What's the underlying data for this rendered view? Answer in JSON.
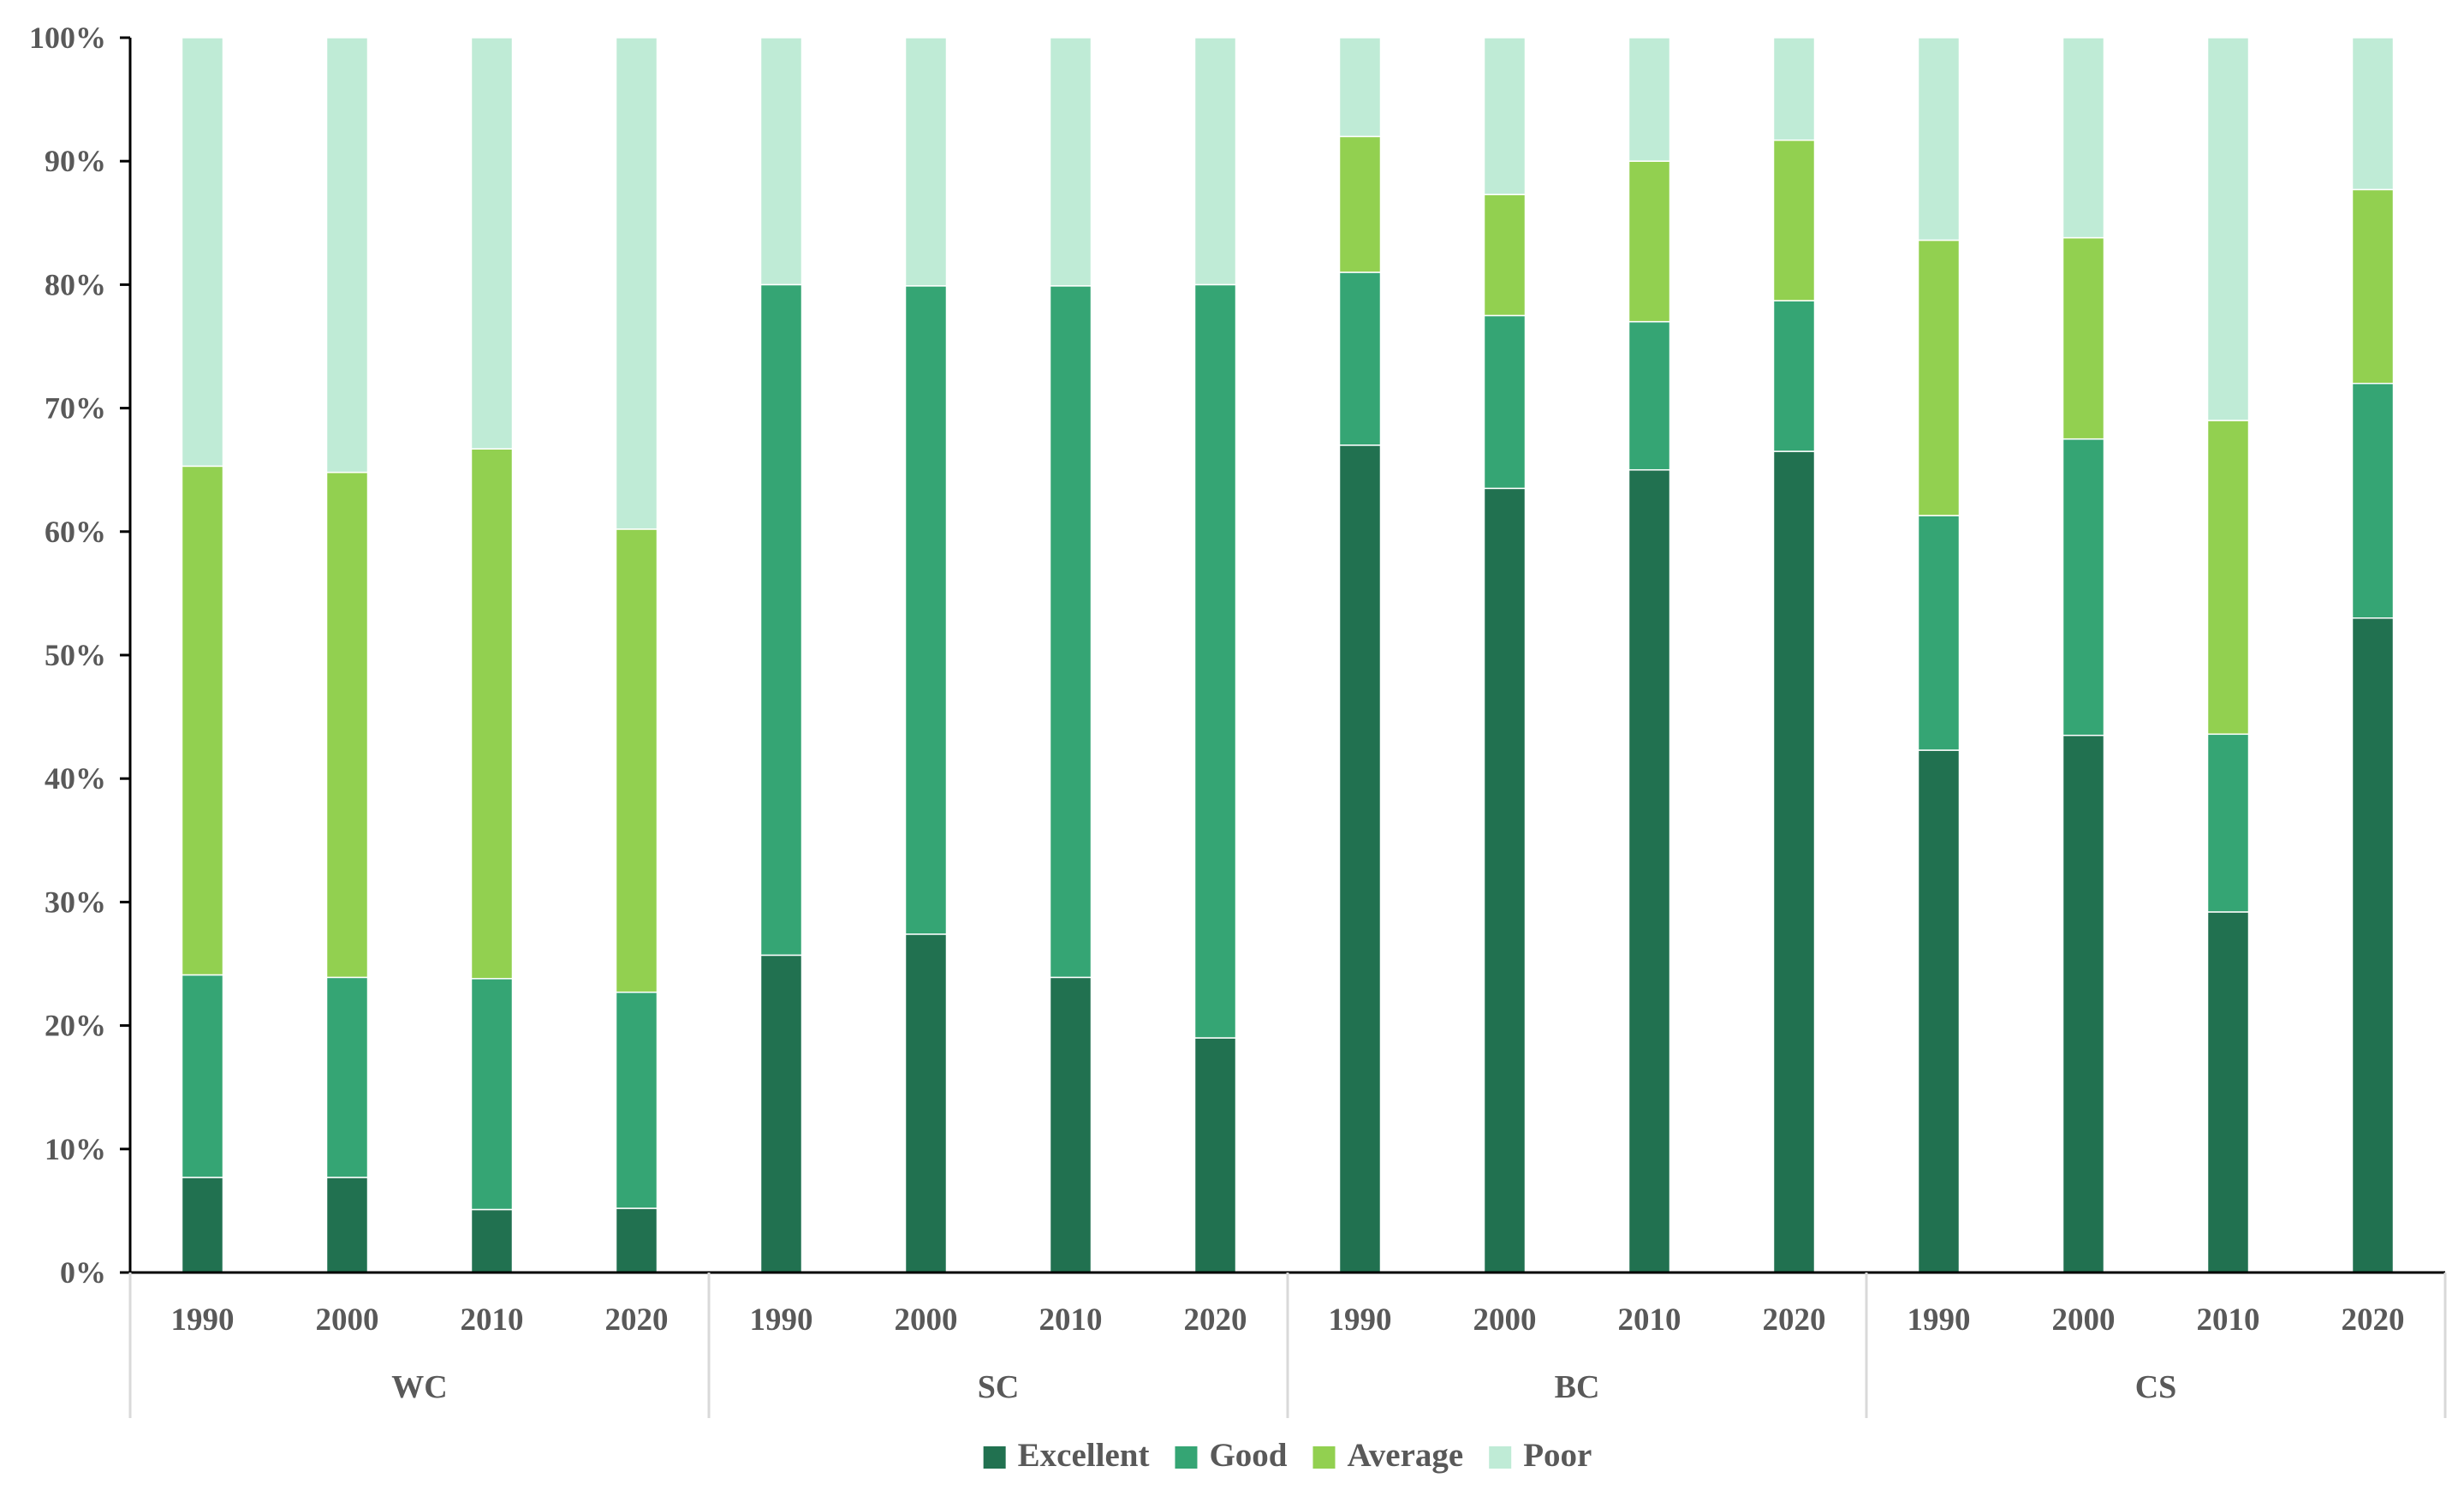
{
  "chart_data": {
    "type": "bar",
    "stacked": "percent",
    "groups": [
      {
        "name": "WC",
        "categories": [
          "1990",
          "2000",
          "2010",
          "2020"
        ]
      },
      {
        "name": "SC",
        "categories": [
          "1990",
          "2000",
          "2010",
          "2020"
        ]
      },
      {
        "name": "BC",
        "categories": [
          "1990",
          "2000",
          "2010",
          "2020"
        ]
      },
      {
        "name": "CS",
        "categories": [
          "1990",
          "2000",
          "2010",
          "2020"
        ]
      }
    ],
    "series": [
      {
        "name": "Excellent",
        "color": "#217150",
        "values": [
          7.7,
          7.7,
          5.1,
          5.2,
          25.7,
          27.4,
          23.9,
          19.0,
          67.0,
          63.5,
          65.0,
          66.5,
          42.3,
          43.5,
          29.2,
          53.0
        ]
      },
      {
        "name": "Good",
        "color": "#35A574",
        "values": [
          16.4,
          16.2,
          18.7,
          17.5,
          54.3,
          52.5,
          56.0,
          61.0,
          14.0,
          14.0,
          12.0,
          12.2,
          19.0,
          24.0,
          14.4,
          19.0
        ]
      },
      {
        "name": "Average",
        "color": "#92D050",
        "values": [
          41.2,
          40.9,
          42.9,
          37.5,
          0.0,
          0.0,
          0.0,
          0.0,
          11.0,
          9.8,
          13.0,
          13.0,
          22.3,
          16.3,
          25.4,
          15.7
        ]
      },
      {
        "name": "Poor",
        "color": "#BFEBD6",
        "values": [
          34.7,
          35.2,
          33.3,
          39.8,
          20.0,
          20.1,
          20.1,
          20.0,
          8.0,
          12.7,
          10.0,
          8.3,
          16.4,
          16.2,
          31.0,
          12.3
        ]
      }
    ],
    "yticks": [
      "0%",
      "10%",
      "20%",
      "30%",
      "40%",
      "50%",
      "60%",
      "70%",
      "80%",
      "90%",
      "100%"
    ],
    "ylim": [
      0,
      100
    ],
    "title": "",
    "xlabel": "",
    "ylabel": "",
    "legend_position": "bottom-center",
    "grid": false
  }
}
